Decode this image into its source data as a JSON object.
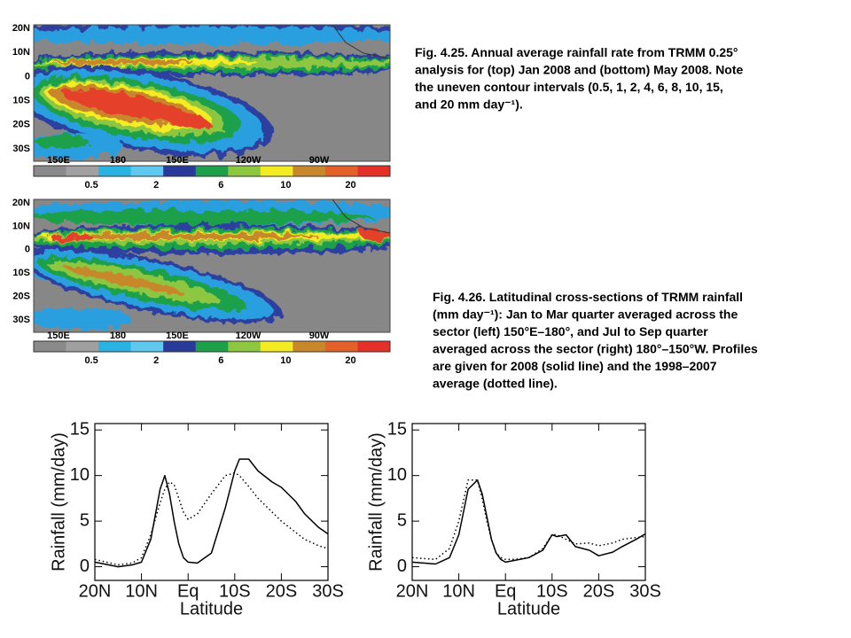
{
  "figure_4_25": {
    "caption": [
      "Fig. 4.25. Annual average rainfall rate from TRMM 0.25°",
      "analysis for (top) Jan 2008 and (bottom) May 2008. Note",
      "the uneven contour intervals (0.5, 1, 2, 4, 6, 8, 10, 15,",
      "and 20 mm day⁻¹)."
    ],
    "maps": [
      {
        "lat_labels": [
          "20N",
          "10N",
          "0",
          "10S",
          "20S",
          "30S"
        ],
        "lon_labels": [
          "150E",
          "180",
          "150E",
          "120W",
          "90W"
        ],
        "colorbar_labels": [
          "0.5",
          "2",
          "6",
          "10",
          "20"
        ]
      },
      {
        "lat_labels": [
          "20N",
          "10N",
          "0",
          "10S",
          "20S",
          "30S"
        ],
        "lon_labels": [
          "150E",
          "180",
          "150E",
          "120W",
          "90W"
        ],
        "colorbar_labels": [
          "0.5",
          "2",
          "6",
          "10",
          "20"
        ]
      }
    ]
  },
  "figure_4_26": {
    "caption": [
      "Fig. 4.26. Latitudinal cross-sections of TRMM rainfall",
      "(mm day⁻¹): Jan to Mar quarter averaged across the",
      "sector (left) 150°E–180°, and Jul to Sep quarter",
      "averaged across the sector (right) 180°–150°W. Profiles",
      "are given for 2008 (solid line) and the 1998–2007",
      "average (dotted line)."
    ]
  },
  "chart_data": [
    {
      "type": "line",
      "ylabel": "Rainfall (mm/day)",
      "xlabel": "Latitude",
      "x": [
        20,
        15,
        12,
        10,
        8,
        6,
        5,
        4,
        3,
        2,
        1,
        0,
        -2,
        -5,
        -8,
        -10,
        -11,
        -13,
        -15,
        -18,
        -20,
        -23,
        -25,
        -28,
        -30
      ],
      "xlim": [
        20,
        -30
      ],
      "xticks": [
        {
          "value": 20,
          "label": "20N"
        },
        {
          "value": 10,
          "label": "10N"
        },
        {
          "value": 0,
          "label": "Eq"
        },
        {
          "value": -10,
          "label": "10S"
        },
        {
          "value": -20,
          "label": "20S"
        },
        {
          "value": -30,
          "label": "30S"
        }
      ],
      "ylim": [
        -1.5,
        15.7
      ],
      "yticks": [
        0,
        5,
        10,
        15
      ],
      "series": [
        {
          "color": "#000000",
          "line_style": "solid",
          "values": [
            0.5,
            0,
            0.2,
            0.5,
            3,
            8.5,
            10,
            8,
            5,
            2.5,
            1,
            0.5,
            0.4,
            1.5,
            6.5,
            10.5,
            11.8,
            11.8,
            10.5,
            9.3,
            8.7,
            7.2,
            5.8,
            4.3,
            3.6
          ]
        },
        {
          "color": "#000000",
          "line_style": "dotted",
          "values": [
            0.8,
            0.2,
            0.4,
            1,
            3.5,
            7,
            8.5,
            9.3,
            9,
            7.5,
            6,
            5.2,
            5.8,
            8,
            10,
            10.3,
            10,
            8.8,
            7.5,
            6,
            5,
            3.8,
            3,
            2.3,
            2
          ]
        }
      ]
    },
    {
      "type": "line",
      "ylabel": "Rainfall (mm/day)",
      "xlabel": "Latitude",
      "x": [
        20,
        15,
        12,
        10,
        8,
        6,
        5,
        4,
        3,
        2,
        1,
        0,
        -2,
        -5,
        -8,
        -10,
        -11,
        -13,
        -15,
        -18,
        -20,
        -23,
        -25,
        -28,
        -30
      ],
      "xlim": [
        20,
        -30
      ],
      "xticks": [
        {
          "value": 20,
          "label": "20N"
        },
        {
          "value": 10,
          "label": "10N"
        },
        {
          "value": 0,
          "label": "Eq"
        },
        {
          "value": -10,
          "label": "10S"
        },
        {
          "value": -20,
          "label": "20S"
        },
        {
          "value": -30,
          "label": "30S"
        }
      ],
      "ylim": [
        -1.5,
        15.7
      ],
      "yticks": [
        0,
        5,
        10,
        15
      ],
      "series": [
        {
          "color": "#000000",
          "line_style": "solid",
          "values": [
            0.5,
            0.3,
            1,
            3.5,
            8.5,
            9.5,
            8,
            5.5,
            3,
            1.5,
            0.8,
            0.5,
            0.7,
            1,
            1.8,
            3.5,
            3.3,
            3.5,
            2.2,
            1.8,
            1.2,
            1.6,
            2.2,
            3,
            3.6
          ]
        },
        {
          "color": "#000000",
          "line_style": "dotted",
          "values": [
            1,
            0.8,
            2,
            5,
            9.5,
            9.5,
            7.5,
            5,
            3,
            1.5,
            1,
            0.8,
            0.8,
            1,
            2,
            3.5,
            3.5,
            3,
            2.5,
            2.6,
            2.3,
            2.6,
            3,
            3.2,
            3.3
          ]
        }
      ]
    }
  ]
}
